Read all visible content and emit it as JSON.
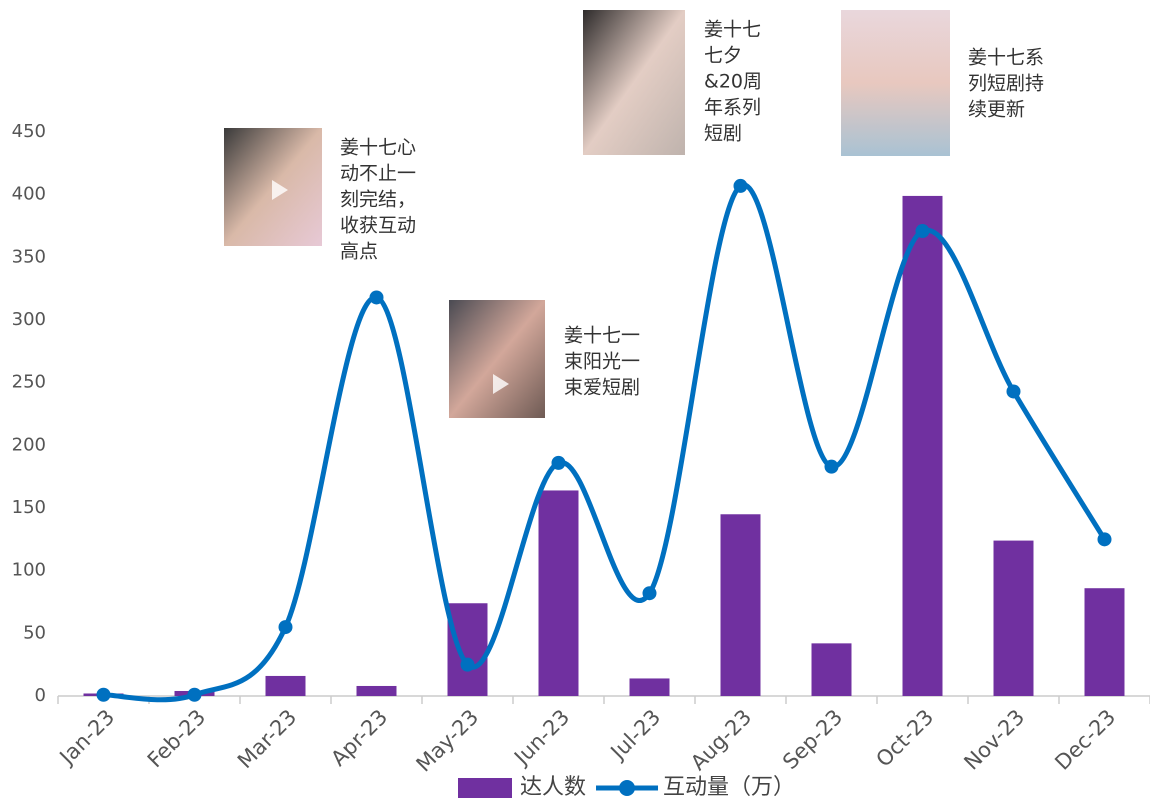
{
  "chart_data": {
    "type": "combo",
    "categories": [
      "Jan-23",
      "Feb-23",
      "Mar-23",
      "Apr-23",
      "May-23",
      "Jun-23",
      "Jul-23",
      "Aug-23",
      "Sep-23",
      "Oct-23",
      "Nov-23",
      "Dec-23"
    ],
    "series": [
      {
        "name": "达人数",
        "type": "bar",
        "color": "#7030a0",
        "values": [
          2,
          4,
          16,
          8,
          74,
          164,
          14,
          145,
          42,
          399,
          124,
          86
        ]
      },
      {
        "name": "互动量（万）",
        "type": "line",
        "color": "#0070c0",
        "values": [
          1,
          1,
          55,
          318,
          25,
          186,
          82,
          407,
          183,
          371,
          243,
          125
        ]
      }
    ],
    "ylim": [
      0,
      450
    ],
    "yticks": [
      0,
      50,
      100,
      150,
      200,
      250,
      300,
      350,
      400,
      450
    ],
    "legend": "bottom",
    "annotations": [
      {
        "lines": [
          "姜十七心",
          "动不止一",
          "刻完结，",
          "收获互动",
          "高点"
        ]
      },
      {
        "lines": [
          "姜十七一",
          "束阳光一",
          "束爱短剧"
        ]
      },
      {
        "lines": [
          "姜十七",
          "七夕",
          "&20周",
          "年系列",
          "短剧"
        ]
      },
      {
        "lines": [
          "姜十七系",
          "列短剧持",
          "续更新"
        ]
      }
    ]
  }
}
